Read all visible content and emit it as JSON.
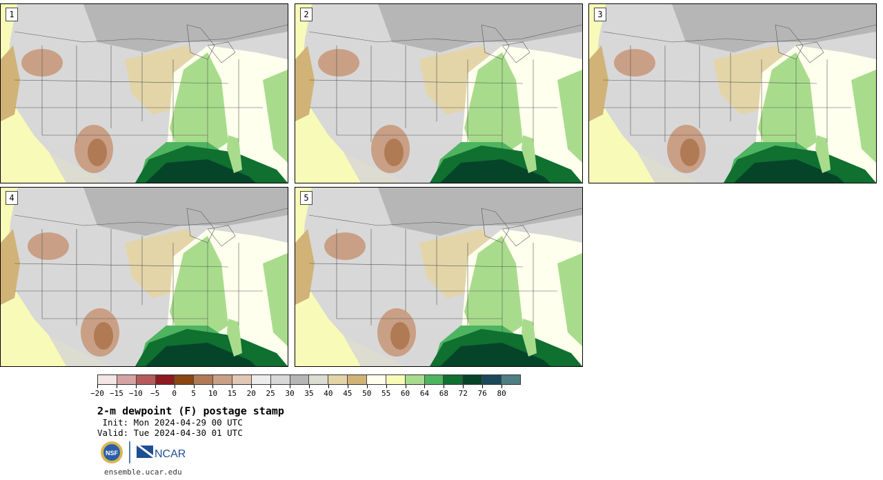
{
  "panels": [
    {
      "label": "1"
    },
    {
      "label": "2"
    },
    {
      "label": "3"
    },
    {
      "label": "4"
    },
    {
      "label": "5"
    }
  ],
  "colorbar": {
    "colors": [
      "#f4e6e6",
      "#d6a3a3",
      "#b55b5b",
      "#8e1a1f",
      "#8a4613",
      "#b07a54",
      "#c9a086",
      "#e2c7b4",
      "#ececec",
      "#d8d8d8",
      "#b6b6b6",
      "#dcdcd0",
      "#e3d5a8",
      "#d1b377",
      "#ffffee",
      "#f8fab8",
      "#a8dc8c",
      "#4fb460",
      "#0f7030",
      "#06442a",
      "#1a4a5a",
      "#4e7f82"
    ],
    "ticks": [
      "−20",
      "−15",
      "−10",
      "−5",
      "0",
      "5",
      "10",
      "15",
      "20",
      "25",
      "30",
      "35",
      "40",
      "45",
      "50",
      "55",
      "60",
      "64",
      "68",
      "72",
      "76",
      "80"
    ]
  },
  "title": "2-m dewpoint (F) postage stamp",
  "init_line": " Init: Mon 2024-04-29 00 UTC",
  "valid_line": "Valid: Tue 2024-04-30 01 UTC",
  "logo_nsf": "NSF",
  "logo_ncar": "NCAR",
  "url": "ensemble.ucar.edu"
}
